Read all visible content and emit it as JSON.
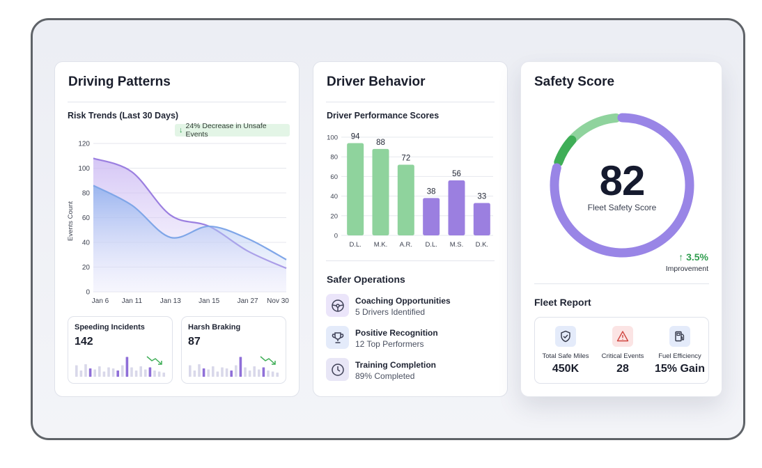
{
  "driving_patterns": {
    "title": "Driving Patterns",
    "chart_title": "Risk Trends (Last 30 Days)",
    "badge": "24% Decrease in Unsafe Events",
    "speeding": {
      "label": "Speeding Incidents",
      "value": "142"
    },
    "harsh_braking": {
      "label": "Harsh Braking",
      "value": "87"
    }
  },
  "driver_behavior": {
    "title": "Driver Behavior",
    "chart_title": "Driver Performance Scores",
    "safer_ops_title": "Safer Operations",
    "ops": [
      {
        "title": "Coaching Opportunities",
        "sub": "5 Drivers Identified",
        "icon": "steering-wheel-icon"
      },
      {
        "title": "Positive Recognition",
        "sub": "12 Top Performers",
        "icon": "trophy-icon"
      },
      {
        "title": "Training Completion",
        "sub": "89% Completed",
        "icon": "clock-icon"
      }
    ]
  },
  "safety_score": {
    "title": "Safety Score",
    "score": "82",
    "score_label": "Fleet Safety Score",
    "score_fraction": 0.82,
    "improvement": "↑ 3.5%",
    "improvement_label": "Improvement",
    "report_title": "Fleet Report",
    "report": [
      {
        "label": "Total Safe Miles",
        "value": "450K",
        "icon": "shield-check-icon"
      },
      {
        "label": "Critical Events",
        "value": "28",
        "icon": "warning-icon"
      },
      {
        "label": "Fuel Efficiency",
        "value": "15% Gain",
        "icon": "fuel-pump-icon"
      }
    ]
  },
  "colors": {
    "purple": "#9b7fe0",
    "green": "#8fd39d",
    "green_dark": "#3fae57",
    "blue": "#7fa6e8",
    "gauge_track": "#9985e6"
  },
  "chart_data": [
    {
      "type": "area",
      "title": "Risk Trends (Last 30 Days)",
      "ylabel": "Events Count",
      "ylim": [
        0,
        120
      ],
      "yticks": [
        0,
        20,
        40,
        60,
        80,
        100,
        120
      ],
      "categories": [
        "Jan 6",
        "Jan 11",
        "Jan 13",
        "Jan 15",
        "Jan 27",
        "Nov 30"
      ],
      "series": [
        {
          "values": [
            108,
            97,
            62,
            53,
            33,
            19
          ]
        },
        {
          "values": [
            86,
            70,
            44,
            53,
            43,
            26
          ]
        }
      ]
    },
    {
      "type": "bar",
      "title": "Driver Performance Scores",
      "ylim": [
        0,
        100
      ],
      "yticks": [
        0,
        20,
        40,
        60,
        80,
        100
      ],
      "categories": [
        "D.L.",
        "M.K.",
        "A.R.",
        "D.L.",
        "M.S.",
        "D.K."
      ],
      "values": [
        94,
        88,
        72,
        38,
        56,
        33
      ],
      "value_labels": [
        "94",
        "88",
        "72",
        "38",
        "56",
        "33"
      ]
    },
    {
      "type": "bar",
      "title": "Speeding Incidents",
      "values": [
        0.55,
        0.3,
        0.6,
        0.4,
        0.35,
        0.5,
        0.25,
        0.45,
        0.4,
        0.3,
        0.55,
        0.95,
        0.45,
        0.3,
        0.5,
        0.35,
        0.45,
        0.3,
        0.25,
        0.2
      ]
    },
    {
      "type": "bar",
      "title": "Harsh Braking",
      "values": [
        0.55,
        0.3,
        0.6,
        0.4,
        0.35,
        0.5,
        0.25,
        0.45,
        0.4,
        0.3,
        0.55,
        0.95,
        0.45,
        0.3,
        0.5,
        0.35,
        0.45,
        0.3,
        0.25,
        0.2
      ]
    }
  ]
}
